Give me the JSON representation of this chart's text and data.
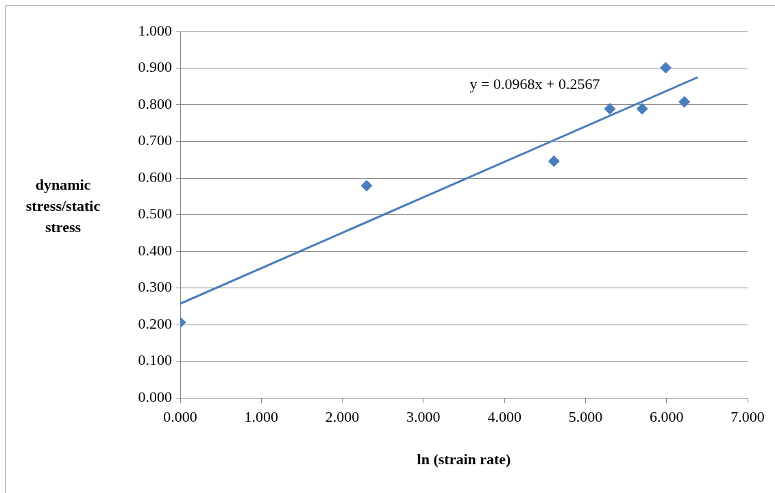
{
  "chart_data": {
    "type": "scatter",
    "xlabel": "ln (strain rate)",
    "ylabel": "dynamic stress/static stress",
    "xlim": [
      0,
      7
    ],
    "xticks": [
      {
        "value": 0,
        "label": "0.000"
      },
      {
        "value": 1,
        "label": "1.000"
      },
      {
        "value": 2,
        "label": "2.000"
      },
      {
        "value": 3,
        "label": "3.000"
      },
      {
        "value": 4,
        "label": "4.000"
      },
      {
        "value": 5,
        "label": "5.000"
      },
      {
        "value": 6,
        "label": "6.000"
      },
      {
        "value": 7,
        "label": "7.000"
      }
    ],
    "ylim": [
      0,
      1
    ],
    "yticks": [
      {
        "value": 0,
        "label": "0.000"
      },
      {
        "value": 0.1,
        "label": "0.100"
      },
      {
        "value": 0.2,
        "label": "0.200"
      },
      {
        "value": 0.3,
        "label": "0.300"
      },
      {
        "value": 0.4,
        "label": "0.400"
      },
      {
        "value": 0.5,
        "label": "0.500"
      },
      {
        "value": 0.6,
        "label": "0.600"
      },
      {
        "value": 0.7,
        "label": "0.700"
      },
      {
        "value": 0.8,
        "label": "0.800"
      },
      {
        "value": 0.9,
        "label": "0.900"
      },
      {
        "value": 1,
        "label": "1.000"
      }
    ],
    "series": [
      {
        "type": "scatter",
        "color": "#4a7ebb",
        "marker": "diamond",
        "x": [
          0,
          2.3,
          4.61,
          5.3,
          5.7,
          5.99,
          6.22
        ],
        "values": [
          0.206,
          0.579,
          0.646,
          0.789,
          0.789,
          0.901,
          0.808
        ]
      },
      {
        "type": "line",
        "color": "#4a7ebb",
        "marker": "none",
        "line_style": "solid",
        "x": [
          0,
          6.385
        ],
        "values": [
          0.257,
          0.875
        ]
      }
    ],
    "annotations": [
      "y = 0.0968x + 0.2567"
    ],
    "grid": "y",
    "legend": false
  }
}
